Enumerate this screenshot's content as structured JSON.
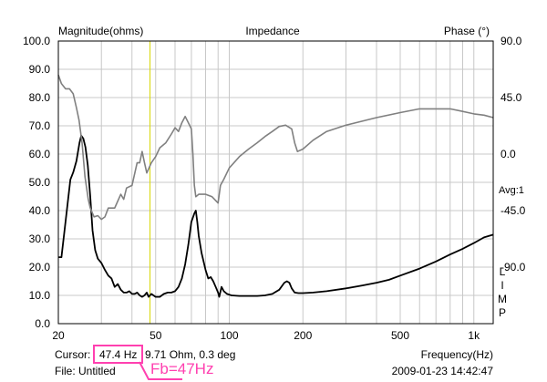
{
  "chart_data": {
    "type": "line",
    "title": "Impedance",
    "left_axis_label": "Magnitude(ohms)",
    "right_axis_label": "Phase (°)",
    "xlabel": "Frequency(Hz)",
    "x_scale": "log",
    "xlim": [
      20,
      1200
    ],
    "ylim_left": [
      0,
      100
    ],
    "ylim_right": [
      -135,
      90
    ],
    "grid": true,
    "x_tick_labels": [
      {
        "value": 20,
        "label": "20"
      },
      {
        "value": 50,
        "label": "50"
      },
      {
        "value": 100,
        "label": "100"
      },
      {
        "value": 200,
        "label": "200"
      },
      {
        "value": 500,
        "label": "500"
      },
      {
        "value": 1000,
        "label": "1k"
      }
    ],
    "x_gridlines": [
      20,
      30,
      40,
      50,
      60,
      70,
      80,
      90,
      100,
      200,
      300,
      400,
      500,
      600,
      700,
      800,
      900,
      1000
    ],
    "left_ticks": [
      {
        "value": 0,
        "label": "0.0"
      },
      {
        "value": 10,
        "label": "10.0"
      },
      {
        "value": 20,
        "label": "20.0"
      },
      {
        "value": 30,
        "label": "30.0"
      },
      {
        "value": 40,
        "label": "40.0"
      },
      {
        "value": 50,
        "label": "50.0"
      },
      {
        "value": 60,
        "label": "60.0"
      },
      {
        "value": 70,
        "label": "70.0"
      },
      {
        "value": 80,
        "label": "80.0"
      },
      {
        "value": 90,
        "label": "90.0"
      },
      {
        "value": 100,
        "label": "100.0"
      }
    ],
    "right_ticks": [
      {
        "value": 90,
        "label": "90.0"
      },
      {
        "value": 45,
        "label": "45.0"
      },
      {
        "value": 0,
        "label": "0.0"
      },
      {
        "value": -45,
        "label": "-45.0"
      },
      {
        "value": -90,
        "label": "-90.0"
      }
    ],
    "avg_label": "Avg:1",
    "vertical_label": [
      "L",
      "I",
      "M",
      "P"
    ],
    "cursor_x": 47.4,
    "series": [
      {
        "axis": "left",
        "color": "#000000",
        "points": [
          [
            20,
            23.5
          ],
          [
            20.6,
            23.5
          ],
          [
            21.2,
            33
          ],
          [
            21.8,
            42
          ],
          [
            22.4,
            51
          ],
          [
            23,
            53.5
          ],
          [
            23.7,
            57.5
          ],
          [
            24.4,
            64
          ],
          [
            24.8,
            66.5
          ],
          [
            25.3,
            65.5
          ],
          [
            25.8,
            62.5
          ],
          [
            26.4,
            56
          ],
          [
            27,
            45
          ],
          [
            27.6,
            33
          ],
          [
            28.3,
            26
          ],
          [
            29,
            23
          ],
          [
            30,
            21.5
          ],
          [
            31,
            19
          ],
          [
            32,
            17
          ],
          [
            33,
            16
          ],
          [
            34,
            13
          ],
          [
            35,
            14
          ],
          [
            36,
            12
          ],
          [
            37,
            11
          ],
          [
            38,
            11
          ],
          [
            39,
            11.5
          ],
          [
            40,
            10.5
          ],
          [
            41,
            10.5
          ],
          [
            42,
            11
          ],
          [
            43,
            10
          ],
          [
            44,
            9.5
          ],
          [
            45,
            10
          ],
          [
            46,
            11
          ],
          [
            46.8,
            9.5
          ],
          [
            48,
            10.5
          ],
          [
            50,
            9.5
          ],
          [
            52,
            9.5
          ],
          [
            54,
            10.5
          ],
          [
            56,
            11
          ],
          [
            58,
            11
          ],
          [
            60,
            11.5
          ],
          [
            62,
            13
          ],
          [
            64,
            16
          ],
          [
            66,
            21
          ],
          [
            68,
            28
          ],
          [
            70,
            36
          ],
          [
            72,
            39
          ],
          [
            73,
            40
          ],
          [
            74,
            36
          ],
          [
            75,
            31
          ],
          [
            77,
            25
          ],
          [
            80,
            19
          ],
          [
            82,
            16
          ],
          [
            84,
            16.5
          ],
          [
            86,
            15
          ],
          [
            88,
            13
          ],
          [
            90,
            11
          ],
          [
            91,
            9.5
          ],
          [
            93,
            13
          ],
          [
            95,
            11.5
          ],
          [
            98,
            10.5
          ],
          [
            102,
            10
          ],
          [
            110,
            9.8
          ],
          [
            120,
            9.8
          ],
          [
            130,
            9.8
          ],
          [
            140,
            10
          ],
          [
            150,
            10.5
          ],
          [
            160,
            12
          ],
          [
            168,
            14.5
          ],
          [
            172,
            15
          ],
          [
            176,
            14.5
          ],
          [
            180,
            12.5
          ],
          [
            185,
            11
          ],
          [
            192,
            10.8
          ],
          [
            200,
            10.8
          ],
          [
            220,
            11
          ],
          [
            250,
            11.5
          ],
          [
            300,
            12.5
          ],
          [
            350,
            13.5
          ],
          [
            400,
            14.5
          ],
          [
            450,
            15.5
          ],
          [
            500,
            17
          ],
          [
            600,
            19.5
          ],
          [
            700,
            22
          ],
          [
            800,
            24.5
          ],
          [
            900,
            26.5
          ],
          [
            1000,
            28.5
          ],
          [
            1100,
            30.5
          ],
          [
            1200,
            31.5
          ]
        ]
      },
      {
        "axis": "right",
        "color": "#808080",
        "points": [
          [
            20,
            63
          ],
          [
            20.6,
            56
          ],
          [
            21.4,
            52
          ],
          [
            22.2,
            52
          ],
          [
            23,
            48
          ],
          [
            23.7,
            37
          ],
          [
            24.3,
            27
          ],
          [
            25,
            9
          ],
          [
            25.7,
            -18
          ],
          [
            26.5,
            -36
          ],
          [
            27,
            -43
          ],
          [
            28,
            -50
          ],
          [
            29,
            -49
          ],
          [
            30,
            -52
          ],
          [
            31,
            -50
          ],
          [
            32,
            -43
          ],
          [
            34,
            -43
          ],
          [
            36,
            -32
          ],
          [
            37,
            -36
          ],
          [
            38,
            -27
          ],
          [
            40,
            -25
          ],
          [
            42,
            -7
          ],
          [
            43,
            -7
          ],
          [
            44,
            2
          ],
          [
            45,
            -7
          ],
          [
            46,
            -15
          ],
          [
            48,
            -7
          ],
          [
            50,
            -2
          ],
          [
            52,
            5
          ],
          [
            55,
            9
          ],
          [
            58,
            16
          ],
          [
            60,
            21
          ],
          [
            62,
            18
          ],
          [
            64,
            25
          ],
          [
            66,
            30
          ],
          [
            68,
            25
          ],
          [
            70,
            20
          ],
          [
            71,
            0
          ],
          [
            72,
            -25
          ],
          [
            73,
            -34
          ],
          [
            75,
            -32
          ],
          [
            80,
            -32
          ],
          [
            85,
            -34
          ],
          [
            90,
            -39
          ],
          [
            92,
            -25
          ],
          [
            95,
            -20
          ],
          [
            100,
            -11
          ],
          [
            110,
            -2
          ],
          [
            120,
            4
          ],
          [
            130,
            9
          ],
          [
            140,
            14
          ],
          [
            150,
            18
          ],
          [
            160,
            22
          ],
          [
            170,
            23
          ],
          [
            180,
            20
          ],
          [
            185,
            9
          ],
          [
            190,
            2
          ],
          [
            200,
            4
          ],
          [
            220,
            11
          ],
          [
            250,
            18
          ],
          [
            300,
            23
          ],
          [
            400,
            29
          ],
          [
            500,
            33
          ],
          [
            600,
            36
          ],
          [
            700,
            36
          ],
          [
            800,
            36
          ],
          [
            900,
            34
          ],
          [
            1000,
            32
          ],
          [
            1100,
            31
          ],
          [
            1200,
            29
          ]
        ]
      }
    ]
  },
  "footer": {
    "cursor_label": "Cursor:",
    "cursor_freq": "47.4 Hz",
    "cursor_rest": "9.71 Ohm, 0.3 deg",
    "file_label": "File: Untitled",
    "timestamp": "2009-01-23 14:42:47"
  },
  "annotation": {
    "text": "Fb=47Hz",
    "color": "#ff40b0"
  }
}
